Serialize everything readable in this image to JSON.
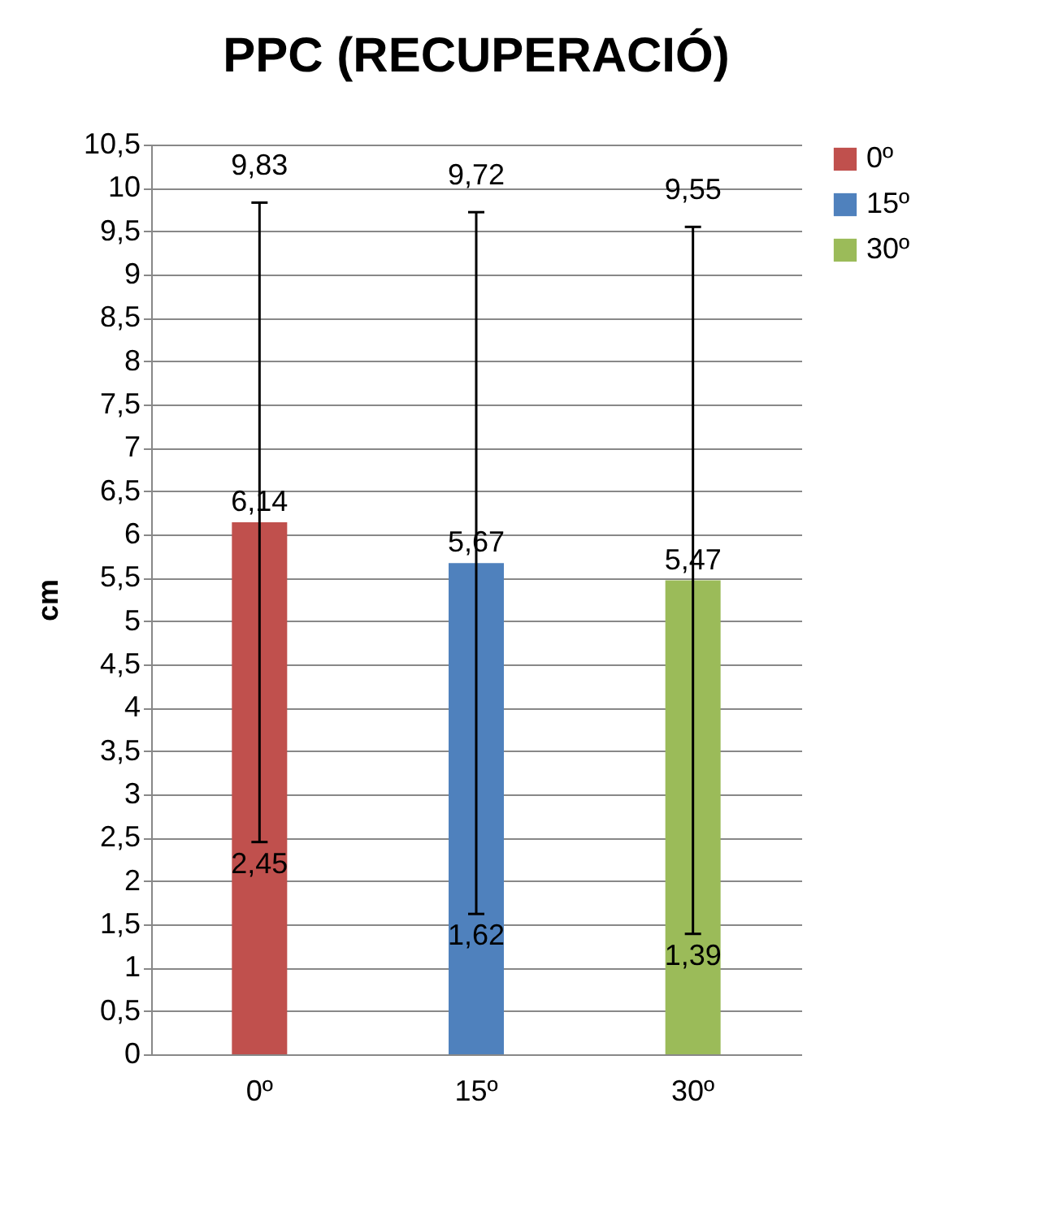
{
  "chart_data": {
    "type": "bar",
    "title": "PPC (RECUPERACIÓ)",
    "ylabel": "cm",
    "categories": [
      "0º",
      "15º",
      "30º"
    ],
    "series": [
      {
        "name": "0º",
        "color": "#c0504d",
        "values": [
          6.14,
          null,
          null
        ],
        "errors": [
          [
            2.45,
            9.83
          ],
          null,
          null
        ],
        "value_labels": [
          "6,14",
          null,
          null
        ]
      },
      {
        "name": "15º",
        "color": "#4f81bd",
        "values": [
          null,
          5.67,
          null
        ],
        "errors": [
          null,
          [
            1.62,
            9.72
          ],
          null
        ],
        "value_labels": [
          null,
          "5,67",
          null
        ]
      },
      {
        "name": "30º",
        "color": "#9bbb59",
        "values": [
          null,
          null,
          5.47
        ],
        "errors": [
          null,
          null,
          [
            1.39,
            9.55
          ]
        ],
        "value_labels": [
          null,
          null,
          "5,47"
        ]
      }
    ],
    "annotations": [
      "9,83",
      "2,45",
      "9,72",
      "1,62",
      "9,55",
      "1,39"
    ],
    "ylim": [
      0,
      10.5
    ],
    "yticks": [
      0,
      {
        "value": 0.5,
        "label": "0,5"
      },
      1,
      {
        "value": 1.5,
        "label": "1,5"
      },
      2,
      {
        "value": 2.5,
        "label": "2,5"
      },
      3,
      {
        "value": 3.5,
        "label": "3,5"
      },
      4,
      {
        "value": 4.5,
        "label": "4,5"
      },
      5,
      {
        "value": 5.5,
        "label": "5,5"
      },
      6,
      {
        "value": 6.5,
        "label": "6,5"
      },
      7,
      {
        "value": 7.5,
        "label": "7,5"
      },
      8,
      {
        "value": 8.5,
        "label": "8,5"
      },
      9,
      {
        "value": 9.5,
        "label": "9,5"
      },
      10,
      {
        "value": 10.5,
        "label": "10,5"
      }
    ],
    "grid": "y",
    "legend": "right"
  }
}
